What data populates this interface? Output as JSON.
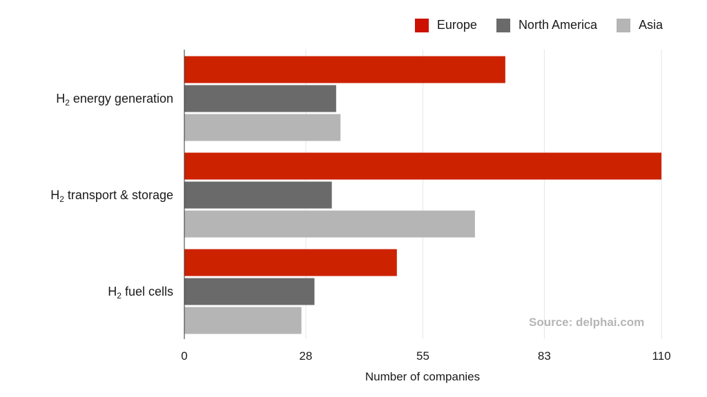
{
  "chart_data": {
    "type": "bar",
    "orientation": "horizontal",
    "categories": [
      "H₂ energy generation",
      "H₂ transport & storage",
      "H₂ fuel cells"
    ],
    "series": [
      {
        "name": "Europe",
        "color": "#cc2200",
        "values": [
          74,
          110,
          49
        ]
      },
      {
        "name": "North America",
        "color": "#6b6a6a",
        "values": [
          35,
          34,
          30
        ]
      },
      {
        "name": "Asia",
        "color": "#b5b5b5",
        "values": [
          36,
          67,
          27
        ]
      }
    ],
    "xlabel": "Number of companies",
    "xlim": [
      0,
      110
    ],
    "xticks": [
      0,
      28,
      55,
      83,
      110
    ],
    "grid": true,
    "legend_position": "top-right",
    "source": "Source: delphai.com"
  }
}
